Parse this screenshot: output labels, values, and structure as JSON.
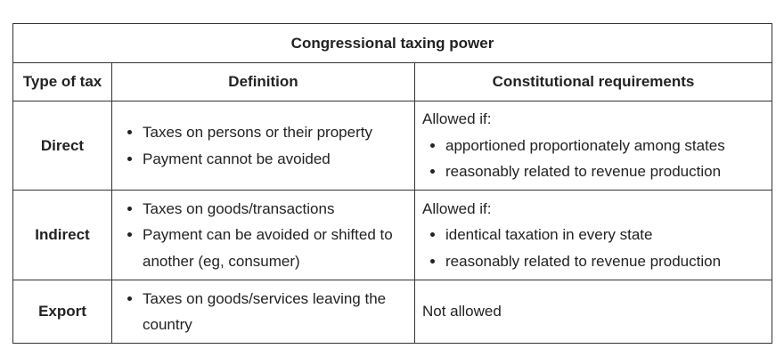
{
  "table": {
    "title": "Congressional taxing power",
    "headers": [
      "Type of tax",
      "Definition",
      "Constitutional requirements"
    ],
    "rows": [
      {
        "type": "Direct",
        "definition": [
          "Taxes on persons or their property",
          "Payment cannot be avoided"
        ],
        "requirement_lead": "Allowed if:",
        "requirements": [
          "apportioned proportionately among states",
          "reasonably related to revenue production"
        ]
      },
      {
        "type": "Indirect",
        "definition": [
          "Taxes on goods/transactions",
          "Payment can be avoided or shifted to another (eg, consumer)"
        ],
        "requirement_lead": "Allowed if:",
        "requirements": [
          "identical taxation in every state",
          "reasonably related to revenue production"
        ]
      },
      {
        "type": "Export",
        "definition": [
          "Taxes on goods/services leaving the country"
        ],
        "requirement_lead": "Not allowed",
        "requirements": []
      }
    ]
  }
}
